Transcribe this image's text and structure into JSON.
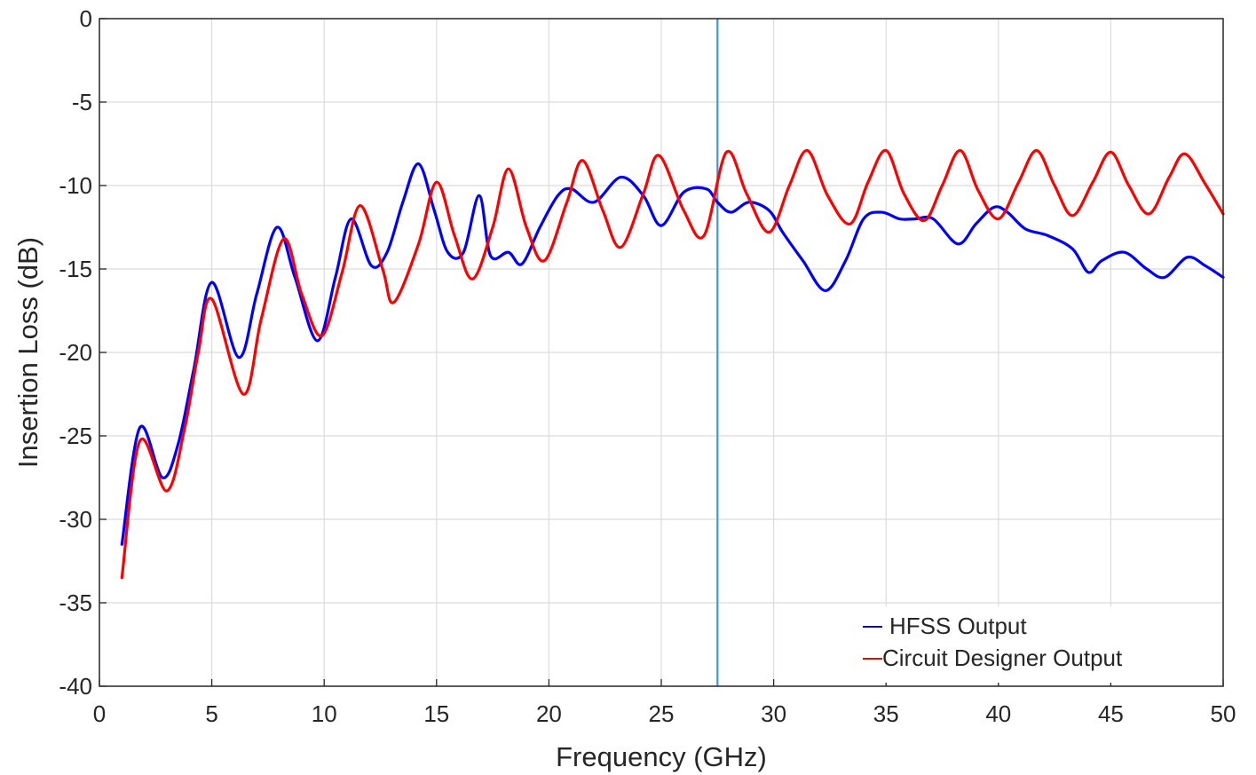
{
  "chart_data": {
    "type": "line",
    "title": "",
    "xlabel": "Frequency (GHz)",
    "ylabel": "Insertion Loss (dB)",
    "xlim": [
      0,
      50
    ],
    "ylim": [
      -40,
      0
    ],
    "xticks": [
      0,
      5,
      10,
      15,
      20,
      25,
      30,
      35,
      40,
      45,
      50
    ],
    "yticks": [
      0,
      -5,
      -10,
      -15,
      -20,
      -25,
      -30,
      -35,
      -40
    ],
    "xtick_labels": [
      "0",
      "5",
      "10",
      "15",
      "20",
      "25",
      "30",
      "35",
      "40",
      "45",
      "50"
    ],
    "ytick_labels": [
      "0",
      "-5",
      "-10",
      "-15",
      "-20",
      "-25",
      "-30",
      "-35",
      "-40"
    ],
    "grid": true,
    "legend_position": "bottom-right",
    "marker_line": {
      "x": 27.5,
      "color": "#3a9ad9"
    },
    "series": [
      {
        "name": "HFSS Output",
        "color": "#0000ff",
        "x": [
          1.0,
          1.8,
          2.8,
          3.5,
          4.2,
          5.0,
          6.2,
          7.0,
          7.9,
          8.7,
          9.7,
          10.5,
          11.2,
          12.1,
          12.8,
          13.5,
          14.2,
          14.9,
          15.5,
          16.2,
          16.9,
          17.4,
          18.2,
          18.8,
          19.6,
          20.4,
          21.0,
          22.0,
          23.2,
          24.2,
          25.0,
          26.0,
          27.0,
          27.5,
          28.1,
          28.9,
          29.8,
          30.4,
          31.3,
          32.3,
          33.2,
          34.0,
          34.8,
          35.6,
          36.3,
          37.1,
          38.2,
          39.0,
          39.8,
          40.4,
          41.2,
          42.2,
          43.3,
          44.0,
          44.6,
          45.6,
          46.6,
          47.4,
          48.4,
          49.2,
          50.0
        ],
        "y": [
          -31.5,
          -24.5,
          -27.5,
          -25.5,
          -21.0,
          -15.8,
          -20.3,
          -16.5,
          -12.5,
          -15.5,
          -19.3,
          -15.5,
          -12.0,
          -14.8,
          -14.0,
          -11.0,
          -8.7,
          -11.5,
          -14.0,
          -14.0,
          -10.6,
          -14.2,
          -14.0,
          -14.7,
          -12.5,
          -10.6,
          -10.2,
          -11.0,
          -9.5,
          -10.6,
          -12.4,
          -10.4,
          -10.2,
          -11.0,
          -11.6,
          -11.0,
          -11.5,
          -12.8,
          -14.5,
          -16.3,
          -14.5,
          -12.0,
          -11.6,
          -12.0,
          -12.0,
          -12.0,
          -13.5,
          -12.3,
          -11.3,
          -11.6,
          -12.6,
          -13.0,
          -13.8,
          -15.2,
          -14.5,
          -14.0,
          -15.0,
          -15.5,
          -14.3,
          -14.8,
          -15.5
        ]
      },
      {
        "name": "Circuit Designer Output",
        "color": "#ff0000",
        "x": [
          1.0,
          1.8,
          3.0,
          3.8,
          4.4,
          5.0,
          6.4,
          7.2,
          8.2,
          9.0,
          9.9,
          10.8,
          11.6,
          12.6,
          13.1,
          14.2,
          15.0,
          15.8,
          16.6,
          17.5,
          18.2,
          19.0,
          19.8,
          20.8,
          21.5,
          22.4,
          23.2,
          24.2,
          24.9,
          26.0,
          26.9,
          27.9,
          28.8,
          29.8,
          30.7,
          31.5,
          32.4,
          33.4,
          34.2,
          35.0,
          35.8,
          36.7,
          37.5,
          38.3,
          39.1,
          40.0,
          40.9,
          41.7,
          42.5,
          43.3,
          44.2,
          45.0,
          45.8,
          46.7,
          47.6,
          48.3,
          49.2,
          50.0
        ],
        "y": [
          -33.5,
          -25.3,
          -28.3,
          -24.5,
          -20.0,
          -16.8,
          -22.5,
          -18.0,
          -13.2,
          -16.5,
          -19.0,
          -15.2,
          -11.2,
          -15.0,
          -17.0,
          -13.5,
          -9.8,
          -13.0,
          -15.6,
          -12.5,
          -9.0,
          -12.5,
          -14.5,
          -11.0,
          -8.5,
          -11.5,
          -13.7,
          -10.5,
          -8.2,
          -11.5,
          -13.0,
          -8.0,
          -10.5,
          -12.8,
          -10.0,
          -7.9,
          -10.6,
          -12.3,
          -9.8,
          -7.9,
          -10.5,
          -12.1,
          -10.0,
          -7.9,
          -10.3,
          -12.0,
          -9.8,
          -7.9,
          -10.0,
          -11.8,
          -9.8,
          -8.0,
          -10.0,
          -11.7,
          -9.5,
          -8.1,
          -9.9,
          -11.7
        ]
      }
    ]
  }
}
